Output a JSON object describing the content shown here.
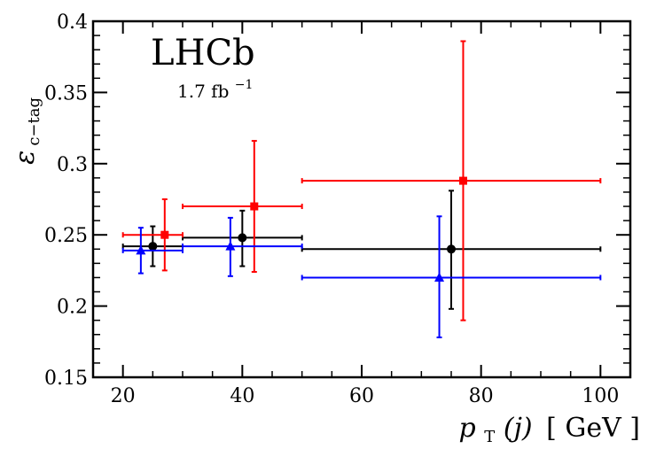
{
  "chart_data": {
    "type": "scatter",
    "title": "",
    "annotations": {
      "experiment": "LHCb",
      "luminosity": "1.7 fb",
      "luminosity_exponent": "−1"
    },
    "xlabel": {
      "text": "p",
      "subscript": "T",
      "argument": "(j)",
      "unit": "[ GeV ]"
    },
    "ylabel": {
      "text": "ε",
      "subscript": "c−tag"
    },
    "xlim": [
      15,
      105
    ],
    "ylim": [
      0.15,
      0.4
    ],
    "xticks": [
      20,
      40,
      60,
      80,
      100
    ],
    "xtick_labels": [
      "20",
      "40",
      "60",
      "80",
      "100"
    ],
    "yticks": [
      0.15,
      0.2,
      0.25,
      0.3,
      0.35,
      0.4
    ],
    "ytick_labels": [
      "0.15",
      "0.2",
      "0.25",
      "0.3",
      "0.35",
      "0.4"
    ],
    "grid": false,
    "legend": "none",
    "series": [
      {
        "name": "black",
        "color": "#000000",
        "marker": "circle",
        "points": [
          {
            "x": 25,
            "xlo": 20,
            "xhi": 30,
            "y": 0.242,
            "ylo": 0.228,
            "yhi": 0.256
          },
          {
            "x": 40,
            "xlo": 30,
            "xhi": 50,
            "y": 0.248,
            "ylo": 0.228,
            "yhi": 0.267
          },
          {
            "x": 75,
            "xlo": 50,
            "xhi": 100,
            "y": 0.24,
            "ylo": 0.198,
            "yhi": 0.281
          }
        ]
      },
      {
        "name": "red",
        "color": "#ff0000",
        "marker": "square",
        "points": [
          {
            "x": 27,
            "xlo": 20,
            "xhi": 30,
            "y": 0.25,
            "ylo": 0.225,
            "yhi": 0.275
          },
          {
            "x": 42,
            "xlo": 30,
            "xhi": 50,
            "y": 0.27,
            "ylo": 0.224,
            "yhi": 0.316
          },
          {
            "x": 77,
            "xlo": 50,
            "xhi": 100,
            "y": 0.288,
            "ylo": 0.19,
            "yhi": 0.386
          }
        ]
      },
      {
        "name": "blue",
        "color": "#0000ff",
        "marker": "triangle",
        "points": [
          {
            "x": 23,
            "xlo": 20,
            "xhi": 30,
            "y": 0.239,
            "ylo": 0.223,
            "yhi": 0.255
          },
          {
            "x": 38,
            "xlo": 30,
            "xhi": 50,
            "y": 0.242,
            "ylo": 0.221,
            "yhi": 0.262
          },
          {
            "x": 73,
            "xlo": 50,
            "xhi": 100,
            "y": 0.22,
            "ylo": 0.178,
            "yhi": 0.263
          }
        ]
      }
    ]
  }
}
